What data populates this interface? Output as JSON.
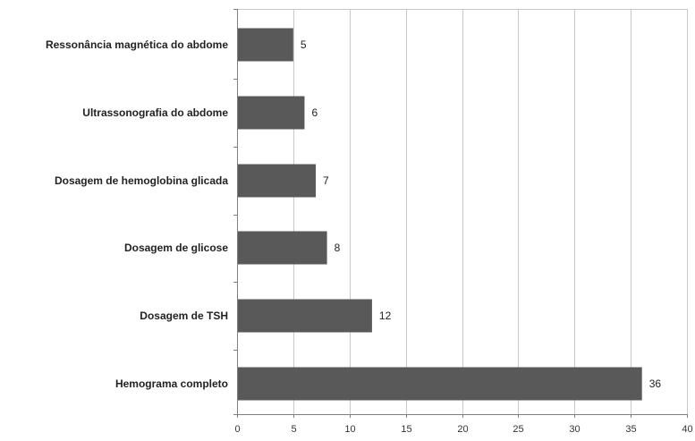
{
  "chart_data": {
    "type": "bar",
    "orientation": "horizontal",
    "categories": [
      "Ressonância magnética do abdome",
      "Ultrassonografia do abdome",
      "Dosagem de hemoglobina glicada",
      "Dosagem de glicose",
      "Dosagem de TSH",
      "Hemograma completo"
    ],
    "values": [
      5,
      6,
      7,
      8,
      12,
      36
    ],
    "data_labels": [
      "5",
      "6",
      "7",
      "8",
      "12",
      "36"
    ],
    "title": "",
    "xlabel": "",
    "ylabel": "",
    "xlim": [
      0,
      40
    ],
    "xticks": [
      0,
      5,
      10,
      15,
      20,
      25,
      30,
      35,
      40
    ],
    "xtick_labels": [
      "0",
      "5",
      "10",
      "15",
      "20",
      "25",
      "30",
      "35",
      "40"
    ],
    "grid": "vertical",
    "legend": "none"
  },
  "colors": {
    "bar": "#595959",
    "grid": "#c8c8c8",
    "axis": "#7f7f7f",
    "border": "#c8c8c8"
  }
}
